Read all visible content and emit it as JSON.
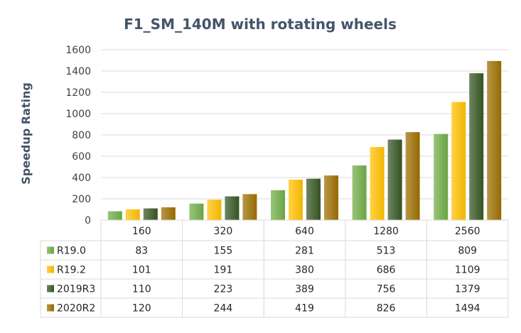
{
  "chart_data": {
    "type": "bar",
    "title": "F1_SM_140M with rotating wheels",
    "xlabel": "",
    "ylabel": "Speedup Rating",
    "ylim": [
      0,
      1600
    ],
    "yticks": [
      0,
      200,
      400,
      600,
      800,
      1000,
      1200,
      1400,
      1600
    ],
    "grid": true,
    "legend": "data-table-left",
    "categories": [
      "160",
      "320",
      "640",
      "1280",
      "2560"
    ],
    "series": [
      {
        "name": "R19.0",
        "values": [
          83,
          155,
          281,
          513,
          809
        ],
        "color": "#70ad47"
      },
      {
        "name": "R19.2",
        "values": [
          101,
          191,
          380,
          686,
          1109
        ],
        "color": "#ffc000"
      },
      {
        "name": "2019R3",
        "values": [
          110,
          223,
          389,
          756,
          1379
        ],
        "color": "#375623"
      },
      {
        "name": "2020R2",
        "values": [
          120,
          244,
          419,
          826,
          1494
        ],
        "color": "#9c6f00"
      }
    ]
  }
}
